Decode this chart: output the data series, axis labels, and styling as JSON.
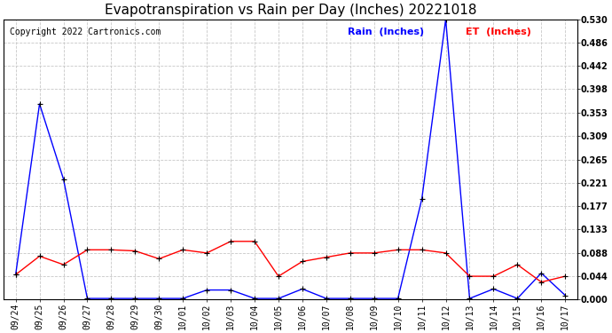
{
  "title": "Evapotranspiration vs Rain per Day (Inches) 20221018",
  "copyright": "Copyright 2022 Cartronics.com",
  "legend_rain": "Rain  (Inches)",
  "legend_et": "ET  (Inches)",
  "x_labels": [
    "09/24",
    "09/25",
    "09/26",
    "09/27",
    "09/28",
    "09/29",
    "09/30",
    "10/01",
    "10/02",
    "10/03",
    "10/04",
    "10/05",
    "10/06",
    "10/07",
    "10/08",
    "10/09",
    "10/10",
    "10/11",
    "10/12",
    "10/13",
    "10/14",
    "10/15",
    "10/16",
    "10/17"
  ],
  "rain_values": [
    0.047,
    0.37,
    0.228,
    0.002,
    0.002,
    0.002,
    0.002,
    0.002,
    0.018,
    0.018,
    0.002,
    0.002,
    0.02,
    0.002,
    0.002,
    0.002,
    0.002,
    0.19,
    0.53,
    0.002,
    0.02,
    0.002,
    0.05,
    0.008
  ],
  "et_values": [
    0.047,
    0.082,
    0.066,
    0.094,
    0.094,
    0.092,
    0.077,
    0.094,
    0.088,
    0.11,
    0.11,
    0.044,
    0.072,
    0.08,
    0.088,
    0.088,
    0.094,
    0.094,
    0.088,
    0.044,
    0.044,
    0.066,
    0.033,
    0.044
  ],
  "rain_color": "#0000ff",
  "et_color": "#ff0000",
  "ylim": [
    0.0,
    0.53
  ],
  "yticks": [
    0.0,
    0.044,
    0.088,
    0.133,
    0.177,
    0.221,
    0.265,
    0.309,
    0.353,
    0.398,
    0.442,
    0.486,
    0.53
  ],
  "background_color": "#ffffff",
  "grid_color": "#c8c8c8",
  "title_fontsize": 11,
  "copyright_fontsize": 7,
  "legend_fontsize": 8,
  "tick_fontsize": 7
}
